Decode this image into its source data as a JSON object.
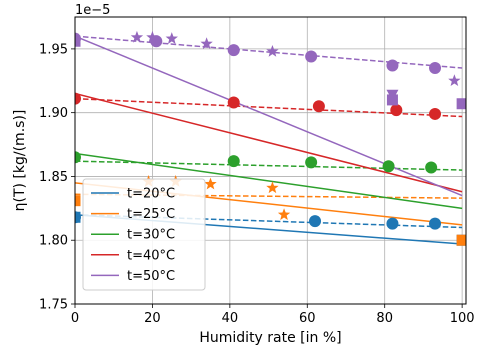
{
  "chart_data": {
    "type": "scatter",
    "xlabel": "Humidity rate [in %]",
    "ylabel": "η(T) [kg/(m.s)]",
    "offset_text": "1e−5",
    "xlim": [
      0,
      101
    ],
    "ylim": [
      1.75,
      1.975
    ],
    "xticks": [
      0,
      20,
      40,
      60,
      80,
      100
    ],
    "xtick_labels": [
      "0",
      "20",
      "40",
      "60",
      "80",
      "100"
    ],
    "yticks": [
      1.75,
      1.8,
      1.85,
      1.9,
      1.95
    ],
    "ytick_labels": [
      "1.75",
      "1.80",
      "1.85",
      "1.90",
      "1.95"
    ],
    "grid": true,
    "legend_position": "lower left",
    "series": [
      {
        "name": "t=20°C",
        "color": "#1f77b4",
        "circles": [
          [
            0,
            1.818
          ],
          [
            62,
            1.815
          ],
          [
            82,
            1.813
          ],
          [
            93,
            1.813
          ]
        ],
        "squares": [
          [
            0,
            1.818
          ],
          [
            100,
            1.8
          ]
        ],
        "stars": [],
        "dashed_fit": [
          [
            0,
            1.82
          ],
          [
            100,
            1.81
          ]
        ],
        "solid_fit": [
          [
            0,
            1.82
          ],
          [
            100,
            1.797
          ]
        ]
      },
      {
        "name": "t=25°C",
        "color": "#ff7f0e",
        "circles": [],
        "squares": [
          [
            0,
            1.831
          ],
          [
            100,
            1.8
          ]
        ],
        "stars": [
          [
            19,
            1.846
          ],
          [
            26,
            1.846
          ],
          [
            35,
            1.844
          ],
          [
            51,
            1.841
          ],
          [
            54,
            1.82
          ]
        ],
        "dashed_fit": [
          [
            0,
            1.836
          ],
          [
            100,
            1.833
          ]
        ],
        "solid_fit": [
          [
            0,
            1.845
          ],
          [
            100,
            1.812
          ]
        ]
      },
      {
        "name": "t=30°C",
        "color": "#2ca02c",
        "circles": [
          [
            0,
            1.865
          ],
          [
            41,
            1.862
          ],
          [
            61,
            1.861
          ],
          [
            81,
            1.858
          ],
          [
            92,
            1.857
          ]
        ],
        "squares": [],
        "stars": [],
        "dashed_fit": [
          [
            0,
            1.862
          ],
          [
            100,
            1.855
          ]
        ],
        "solid_fit": [
          [
            0,
            1.868
          ],
          [
            100,
            1.825
          ]
        ]
      },
      {
        "name": "t=40°C",
        "color": "#d62728",
        "circles": [
          [
            0,
            1.911
          ],
          [
            41,
            1.908
          ],
          [
            63,
            1.905
          ],
          [
            83,
            1.902
          ],
          [
            93,
            1.899
          ]
        ],
        "squares": [],
        "stars": [],
        "dashed_fit": [
          [
            0,
            1.911
          ],
          [
            100,
            1.897
          ]
        ],
        "solid_fit": [
          [
            0,
            1.915
          ],
          [
            100,
            1.838
          ]
        ]
      },
      {
        "name": "t=50°C",
        "color": "#9467bd",
        "circles": [
          [
            0,
            1.958
          ],
          [
            21,
            1.956
          ],
          [
            41,
            1.949
          ],
          [
            61,
            1.944
          ],
          [
            82,
            1.937
          ],
          [
            93,
            1.935
          ]
        ],
        "squares": [
          [
            0,
            1.956
          ],
          [
            82,
            1.91
          ],
          [
            100,
            1.907
          ]
        ],
        "triangles_down": [
          [
            82,
            1.914
          ]
        ],
        "stars": [
          [
            16,
            1.959
          ],
          [
            20,
            1.959
          ],
          [
            25,
            1.958
          ],
          [
            34,
            1.954
          ],
          [
            51,
            1.948
          ],
          [
            98,
            1.925
          ]
        ],
        "dashed_fit": [
          [
            0,
            1.96
          ],
          [
            100,
            1.935
          ]
        ],
        "solid_fit": [
          [
            0,
            1.96
          ],
          [
            100,
            1.835
          ]
        ]
      }
    ]
  }
}
